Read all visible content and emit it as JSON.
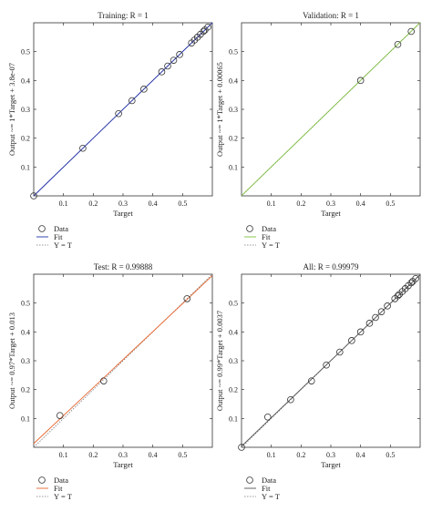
{
  "chart_data": [
    {
      "type": "scatter",
      "title": "Training: R = 1",
      "xlabel": "Target",
      "ylabel": "Output ~= 1*Target + 3.8e-07",
      "xlim": [
        0,
        0.6
      ],
      "ylim": [
        0,
        0.6
      ],
      "xticks": [
        "0.1",
        "0.2",
        "0.3",
        "0.4",
        "0.5"
      ],
      "yticks": [
        "0.1",
        "0.2",
        "0.3",
        "0.4",
        "0.5"
      ],
      "grid": false,
      "fit_color": "#1f2fa8",
      "fit": {
        "slope": 1,
        "intercept": 0
      },
      "data": [
        [
          0.0,
          0.0
        ],
        [
          0.165,
          0.165
        ],
        [
          0.285,
          0.285
        ],
        [
          0.33,
          0.33
        ],
        [
          0.37,
          0.37
        ],
        [
          0.43,
          0.43
        ],
        [
          0.45,
          0.45
        ],
        [
          0.47,
          0.47
        ],
        [
          0.49,
          0.49
        ],
        [
          0.53,
          0.53
        ],
        [
          0.54,
          0.54
        ],
        [
          0.55,
          0.55
        ],
        [
          0.56,
          0.56
        ],
        [
          0.57,
          0.57
        ],
        [
          0.575,
          0.575
        ],
        [
          0.585,
          0.585
        ]
      ],
      "legend": {
        "data": "Data",
        "fit": "Fit",
        "identity": "Y = T"
      }
    },
    {
      "type": "scatter",
      "title": "Validation: R = 1",
      "xlabel": "Target",
      "ylabel": "Output ~= 1*Target + 0.00065",
      "xlim": [
        0,
        0.6
      ],
      "ylim": [
        0,
        0.6
      ],
      "xticks": [
        "0.1",
        "0.2",
        "0.3",
        "0.4",
        "0.5"
      ],
      "yticks": [
        "0.1",
        "0.2",
        "0.3",
        "0.4",
        "0.5"
      ],
      "grid": false,
      "fit_color": "#7fbf3f",
      "fit": {
        "slope": 1,
        "intercept": 0.00065
      },
      "data": [
        [
          0.4,
          0.4
        ],
        [
          0.525,
          0.525
        ],
        [
          0.57,
          0.57
        ]
      ],
      "legend": {
        "data": "Data",
        "fit": "Fit",
        "identity": "Y = T"
      }
    },
    {
      "type": "scatter",
      "title": "Test: R = 0.99888",
      "xlabel": "Target",
      "ylabel": "Output ~= 0.97*Target + 0.013",
      "xlim": [
        0,
        0.6
      ],
      "ylim": [
        0,
        0.6
      ],
      "xticks": [
        "0.1",
        "0.2",
        "0.3",
        "0.4",
        "0.5"
      ],
      "yticks": [
        "0.1",
        "0.2",
        "0.3",
        "0.4",
        "0.5"
      ],
      "grid": false,
      "fit_color": "#e8642c",
      "fit": {
        "slope": 0.97,
        "intercept": 0.013
      },
      "data": [
        [
          0.088,
          0.11
        ],
        [
          0.235,
          0.23
        ],
        [
          0.515,
          0.515
        ]
      ],
      "legend": {
        "data": "Data",
        "fit": "Fit",
        "identity": "Y = T"
      }
    },
    {
      "type": "scatter",
      "title": "All: R = 0.99979",
      "xlabel": "Target",
      "ylabel": "Output ~= 0.99*Target + 0.0037",
      "xlim": [
        0,
        0.6
      ],
      "ylim": [
        0,
        0.6
      ],
      "xticks": [
        "0.1",
        "0.2",
        "0.3",
        "0.4",
        "0.5"
      ],
      "yticks": [
        "0.1",
        "0.2",
        "0.3",
        "0.4",
        "0.5"
      ],
      "grid": false,
      "fit_color": "#555555",
      "fit": {
        "slope": 0.99,
        "intercept": 0.0037
      },
      "data": [
        [
          0.0,
          0.0
        ],
        [
          0.088,
          0.105
        ],
        [
          0.165,
          0.165
        ],
        [
          0.235,
          0.23
        ],
        [
          0.285,
          0.285
        ],
        [
          0.33,
          0.33
        ],
        [
          0.37,
          0.37
        ],
        [
          0.4,
          0.4
        ],
        [
          0.43,
          0.43
        ],
        [
          0.45,
          0.45
        ],
        [
          0.47,
          0.47
        ],
        [
          0.49,
          0.49
        ],
        [
          0.515,
          0.515
        ],
        [
          0.525,
          0.525
        ],
        [
          0.53,
          0.53
        ],
        [
          0.54,
          0.54
        ],
        [
          0.55,
          0.55
        ],
        [
          0.56,
          0.56
        ],
        [
          0.57,
          0.57
        ],
        [
          0.575,
          0.575
        ],
        [
          0.585,
          0.585
        ]
      ],
      "legend": {
        "data": "Data",
        "fit": "Fit",
        "identity": "Y = T"
      }
    }
  ]
}
